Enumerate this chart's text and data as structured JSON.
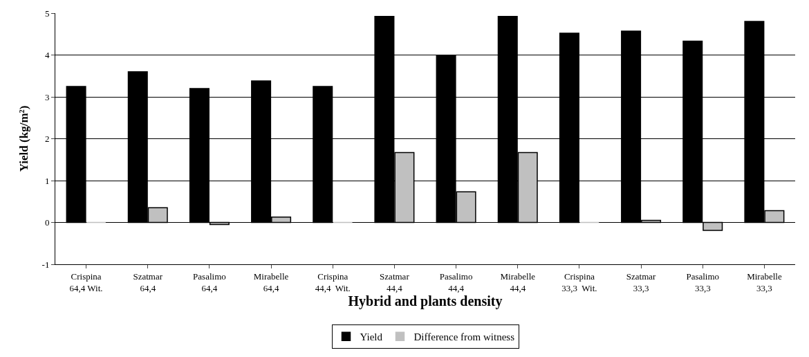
{
  "chart_data": {
    "type": "bar",
    "xlabel": "Hybrid and plants density",
    "ylabel": "Yield (kg/m²)",
    "categories": [
      "Crispina\n64,4 Wit.",
      "Szatmar\n64,4",
      "Pasalimo\n64,4",
      "Mirabelle\n64,4",
      "Crispina\n44,4  Wit.",
      "Szatmar\n44,4",
      "Pasalimo\n44,4",
      "Mirabelle\n44,4",
      "Crispina\n33,3  Wit.",
      "Szatmar\n33,3",
      "Pasalimo\n33,3",
      "Mirabelle\n33,3"
    ],
    "series": [
      {
        "name": "Yield",
        "color": "#000000",
        "values": [
          3.25,
          3.6,
          3.2,
          3.38,
          3.25,
          4.92,
          3.98,
          4.92,
          4.52,
          4.57,
          4.33,
          4.8
        ]
      },
      {
        "name": "Difference from witness",
        "color": "#c0c0c0",
        "values": [
          0,
          0.35,
          -0.05,
          0.13,
          0,
          1.67,
          0.73,
          1.67,
          0,
          0.05,
          -0.19,
          0.28
        ]
      }
    ],
    "ylim": [
      -1,
      5
    ],
    "yticks": [
      -1,
      0,
      1,
      2,
      3,
      4,
      5
    ],
    "grid": "y",
    "legend": "bottom"
  }
}
